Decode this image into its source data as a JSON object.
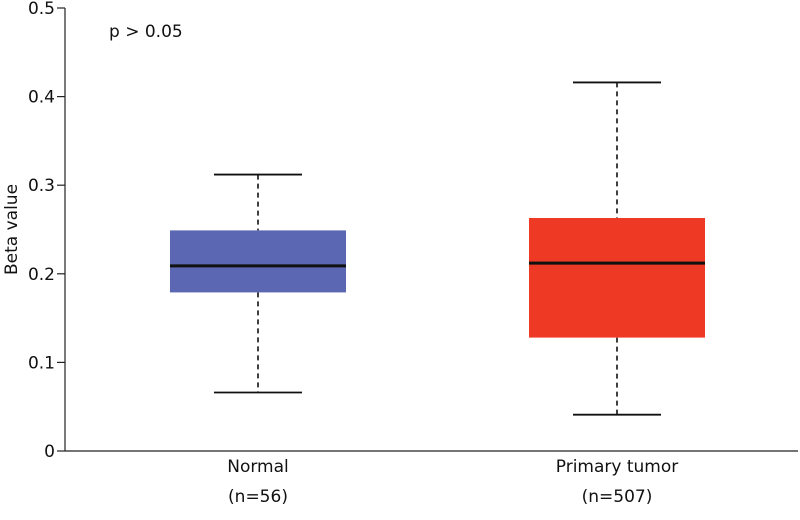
{
  "chart_data": {
    "type": "boxplot",
    "title": "",
    "xlabel": "",
    "ylabel": "Beta value",
    "ylim": [
      0,
      0.5
    ],
    "yticks": [
      "0",
      "0.1",
      "0.2",
      "0.3",
      "0.4",
      "0.5"
    ],
    "annotation": "p > 0.05",
    "categories": [
      {
        "name": "Normal",
        "n_label": "(n=56)",
        "color": "#5b67b3",
        "whisker_low": 0.066,
        "q1": 0.179,
        "median": 0.209,
        "q3": 0.249,
        "whisker_high": 0.312
      },
      {
        "name": "Primary tumor",
        "n_label": "(n=507)",
        "color": "#ee3a24",
        "whisker_low": 0.041,
        "q1": 0.128,
        "median": 0.212,
        "q3": 0.263,
        "whisker_high": 0.416
      }
    ]
  }
}
